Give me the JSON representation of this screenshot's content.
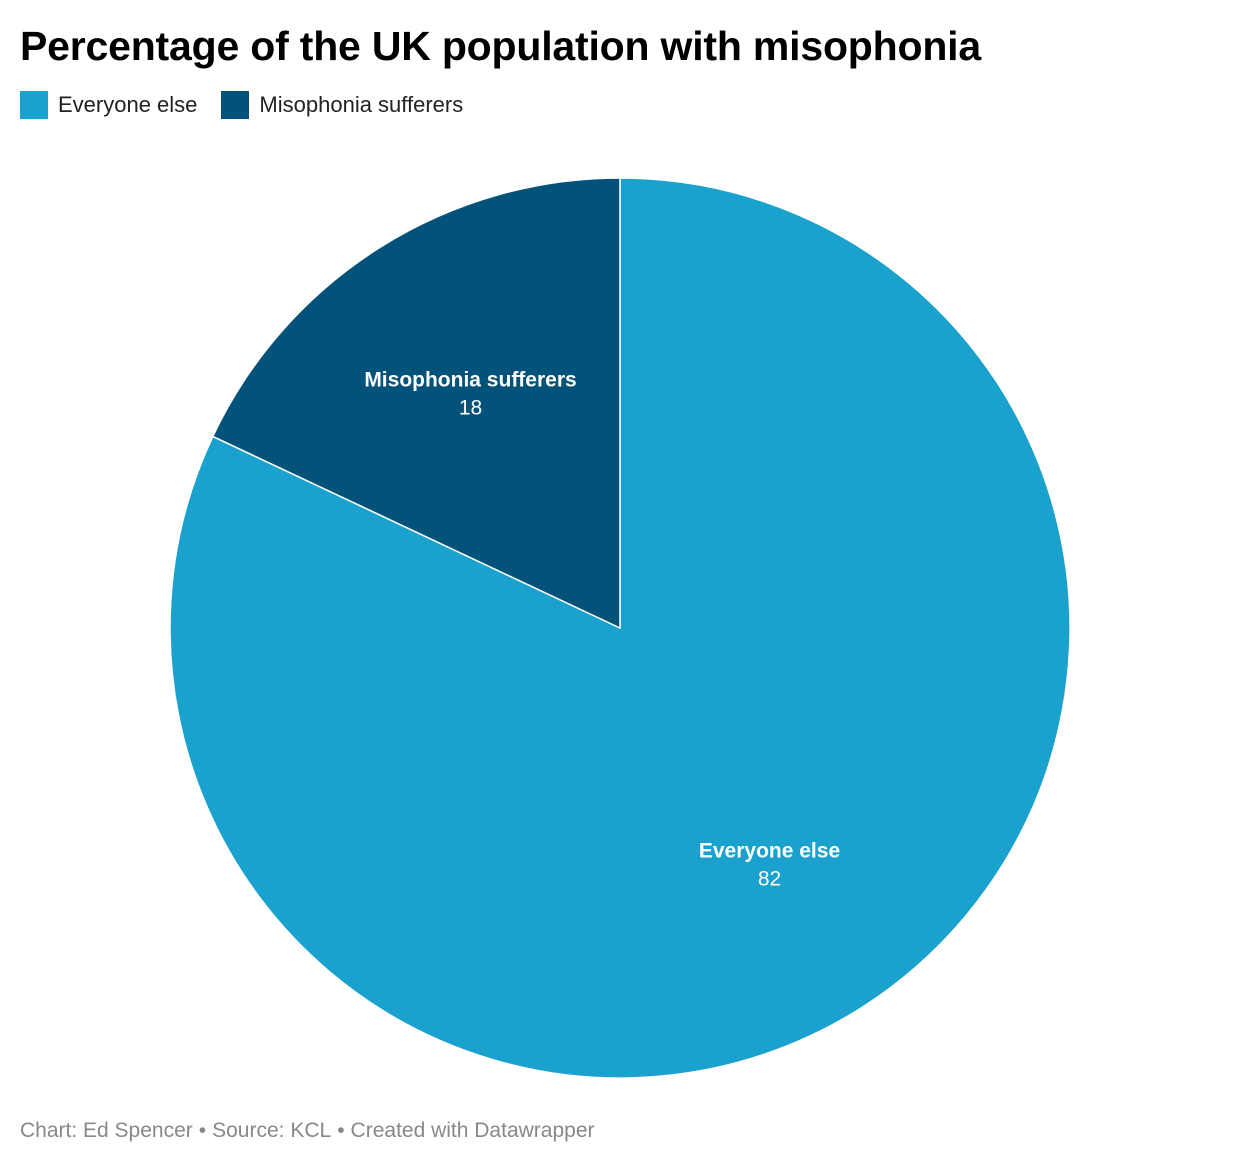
{
  "chart_data": {
    "type": "pie",
    "title": "Percentage of the UK population with misophonia",
    "categories": [
      "Everyone else",
      "Misophonia sufferers"
    ],
    "values": [
      82,
      18
    ],
    "colors": [
      "#1aa1cd",
      "#03527a"
    ],
    "legend_position": "top-left",
    "slice_labels": [
      {
        "name": "Everyone else",
        "value": "82"
      },
      {
        "name": "Misophonia sufferers",
        "value": "18"
      }
    ]
  },
  "footer": {
    "chart_credit": "Chart: Ed Spencer",
    "source": "Source: KCL",
    "tool": "Created with Datawrapper",
    "separator": "•"
  }
}
